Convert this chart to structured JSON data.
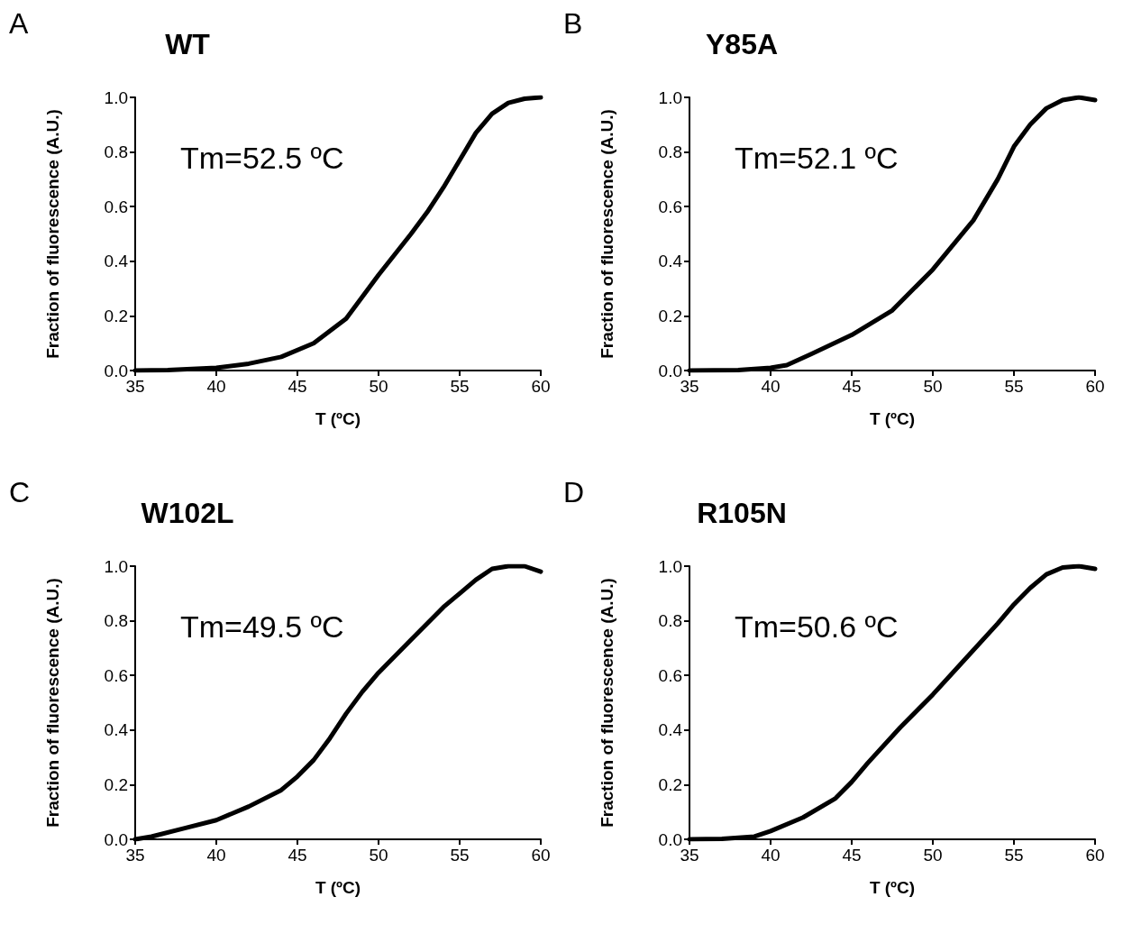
{
  "chart_data": [
    {
      "type": "line",
      "title": "WT",
      "xlabel": "T (ºC)",
      "ylabel": "Fraction of fluorescence (A.U.)",
      "annotations": [
        "A",
        "Tm=52.5 ºC"
      ],
      "xlim": [
        35,
        60
      ],
      "xticks": [
        35,
        40,
        45,
        50,
        55,
        60
      ],
      "ylim": [
        0,
        1
      ],
      "yticks": [
        {
          "value": 0,
          "label": "0.0"
        },
        {
          "value": 0.2,
          "label": "0.2"
        },
        {
          "value": 0.4,
          "label": "0.4"
        },
        {
          "value": 0.6,
          "label": "0.6"
        },
        {
          "value": 0.8,
          "label": "0.8"
        },
        {
          "value": 1,
          "label": "1.0"
        }
      ],
      "grid": false,
      "marker": "none",
      "line_style": "solid",
      "series": [
        {
          "color": "#000000",
          "x": [
            35,
            37,
            40,
            42,
            44,
            46,
            48,
            50,
            52,
            53,
            54,
            55,
            56,
            57,
            58,
            59,
            60
          ],
          "values": [
            0,
            0.002,
            0.01,
            0.025,
            0.05,
            0.1,
            0.19,
            0.35,
            0.5,
            0.58,
            0.67,
            0.77,
            0.87,
            0.94,
            0.98,
            0.995,
            1.0
          ]
        }
      ]
    },
    {
      "type": "line",
      "title": "Y85A",
      "xlabel": "T (ºC)",
      "ylabel": "Fraction of fluorescence (A.U.)",
      "annotations": [
        "B",
        "Tm=52.1 ºC"
      ],
      "xlim": [
        35,
        60
      ],
      "xticks": [
        35,
        40,
        45,
        50,
        55,
        60
      ],
      "ylim": [
        0,
        1
      ],
      "yticks": [
        {
          "value": 0,
          "label": "0.0"
        },
        {
          "value": 0.2,
          "label": "0.2"
        },
        {
          "value": 0.4,
          "label": "0.4"
        },
        {
          "value": 0.6,
          "label": "0.6"
        },
        {
          "value": 0.8,
          "label": "0.8"
        },
        {
          "value": 1,
          "label": "1.0"
        }
      ],
      "grid": false,
      "marker": "none",
      "line_style": "solid",
      "series": [
        {
          "color": "#000000",
          "x": [
            35,
            38,
            40,
            41,
            42.5,
            45,
            47.5,
            50,
            52.5,
            54,
            55,
            56,
            57,
            58,
            59,
            60
          ],
          "values": [
            0,
            0.002,
            0.01,
            0.02,
            0.06,
            0.13,
            0.22,
            0.37,
            0.55,
            0.7,
            0.82,
            0.9,
            0.96,
            0.99,
            1.0,
            0.99
          ]
        }
      ]
    },
    {
      "type": "line",
      "title": "W102L",
      "xlabel": "T (ºC)",
      "ylabel": "Fraction of fluorescence (A.U.)",
      "annotations": [
        "C",
        "Tm=49.5 ºC"
      ],
      "xlim": [
        35,
        60
      ],
      "xticks": [
        35,
        40,
        45,
        50,
        55,
        60
      ],
      "ylim": [
        0,
        1
      ],
      "yticks": [
        {
          "value": 0,
          "label": "0.0"
        },
        {
          "value": 0.2,
          "label": "0.2"
        },
        {
          "value": 0.4,
          "label": "0.4"
        },
        {
          "value": 0.6,
          "label": "0.6"
        },
        {
          "value": 0.8,
          "label": "0.8"
        },
        {
          "value": 1,
          "label": "1.0"
        }
      ],
      "grid": false,
      "marker": "none",
      "line_style": "solid",
      "series": [
        {
          "color": "#000000",
          "x": [
            35,
            36,
            38,
            40,
            42,
            44,
            45,
            46,
            47,
            48,
            49,
            50,
            52,
            54,
            55,
            56,
            57,
            58,
            59,
            60
          ],
          "values": [
            0,
            0.01,
            0.04,
            0.07,
            0.12,
            0.18,
            0.23,
            0.29,
            0.37,
            0.46,
            0.54,
            0.61,
            0.73,
            0.85,
            0.9,
            0.95,
            0.99,
            1.0,
            1.0,
            0.98
          ]
        }
      ]
    },
    {
      "type": "line",
      "title": "R105N",
      "xlabel": "T (ºC)",
      "ylabel": "Fraction of fluorescence (A.U.)",
      "annotations": [
        "D",
        "Tm=50.6 ºC"
      ],
      "xlim": [
        35,
        60
      ],
      "xticks": [
        35,
        40,
        45,
        50,
        55,
        60
      ],
      "ylim": [
        0,
        1
      ],
      "yticks": [
        {
          "value": 0,
          "label": "0.0"
        },
        {
          "value": 0.2,
          "label": "0.2"
        },
        {
          "value": 0.4,
          "label": "0.4"
        },
        {
          "value": 0.6,
          "label": "0.6"
        },
        {
          "value": 0.8,
          "label": "0.8"
        },
        {
          "value": 1,
          "label": "1.0"
        }
      ],
      "grid": false,
      "marker": "none",
      "line_style": "solid",
      "series": [
        {
          "color": "#000000",
          "x": [
            35,
            37,
            39,
            40,
            42,
            44,
            45,
            46,
            48,
            50,
            52,
            54,
            55,
            56,
            57,
            58,
            59,
            60
          ],
          "values": [
            0,
            0.002,
            0.01,
            0.03,
            0.08,
            0.15,
            0.21,
            0.28,
            0.41,
            0.53,
            0.66,
            0.79,
            0.86,
            0.92,
            0.97,
            0.995,
            1.0,
            0.99
          ]
        }
      ]
    }
  ]
}
